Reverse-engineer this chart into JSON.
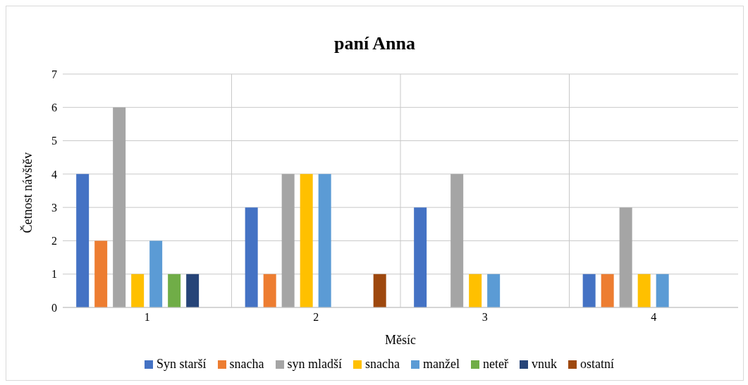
{
  "chart_data": {
    "type": "bar",
    "title": "paní Anna",
    "xlabel": "Měsíc",
    "ylabel": "Četnost návštěv",
    "categories": [
      "1",
      "2",
      "3",
      "4"
    ],
    "series": [
      {
        "name": "Syn starší",
        "color": "#4472c4",
        "values": [
          4,
          3,
          3,
          1
        ]
      },
      {
        "name": "snacha",
        "color": "#ed7d31",
        "values": [
          2,
          1,
          0,
          1
        ]
      },
      {
        "name": "syn mladší",
        "color": "#a5a5a5",
        "values": [
          6,
          4,
          4,
          3
        ]
      },
      {
        "name": "snacha",
        "color": "#ffc000",
        "values": [
          1,
          4,
          1,
          1
        ]
      },
      {
        "name": "manžel",
        "color": "#5b9bd5",
        "values": [
          2,
          4,
          1,
          1
        ]
      },
      {
        "name": "neteř",
        "color": "#70ad47",
        "values": [
          1,
          0,
          0,
          0
        ]
      },
      {
        "name": "vnuk",
        "color": "#264478",
        "values": [
          1,
          0,
          0,
          0
        ]
      },
      {
        "name": "ostatní",
        "color": "#9e480e",
        "values": [
          0,
          1,
          0,
          0
        ]
      }
    ],
    "ylim": [
      0,
      7
    ],
    "yticks": [
      0,
      1,
      2,
      3,
      4,
      5,
      6,
      7
    ],
    "grid": true,
    "legend": "bottom"
  }
}
